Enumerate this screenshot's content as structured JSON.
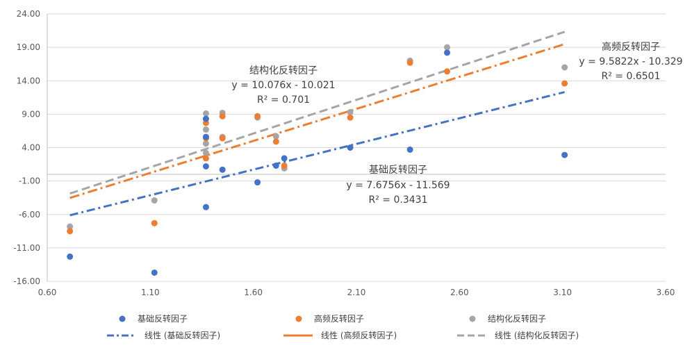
{
  "chart_data": {
    "type": "scatter",
    "xlim": [
      0.6,
      3.6
    ],
    "ylim": [
      -16,
      24
    ],
    "xticks": [
      "0.60",
      "1.10",
      "1.60",
      "2.10",
      "2.60",
      "3.10",
      "3.60"
    ],
    "yticks": [
      "24.00",
      "19.00",
      "14.00",
      "9.00",
      "4.00",
      "-1.00",
      "-6.00",
      "-11.00",
      "-16.00"
    ],
    "grid": "horizontal",
    "legend_position": "bottom",
    "colors": {
      "base": "#4472c4",
      "high": "#ed7d31",
      "struct": "#a5a5a5"
    },
    "series": [
      {
        "name": "基础反转因子",
        "color": "#4472c4",
        "points": [
          [
            0.71,
            -12.3
          ],
          [
            1.12,
            -14.7
          ],
          [
            1.37,
            8.3
          ],
          [
            1.37,
            5.6
          ],
          [
            1.37,
            1.2
          ],
          [
            1.37,
            -4.9
          ],
          [
            1.45,
            0.7
          ],
          [
            1.62,
            -1.2
          ],
          [
            1.71,
            1.3
          ],
          [
            1.75,
            2.4
          ],
          [
            2.07,
            4.0
          ],
          [
            2.36,
            3.7
          ],
          [
            2.54,
            18.2
          ],
          [
            3.11,
            2.9
          ]
        ],
        "trend": {
          "slope": 7.6756,
          "intercept": -11.569,
          "x_range": [
            0.71,
            3.11
          ]
        }
      },
      {
        "name": "高频反转因子",
        "color": "#ed7d31",
        "points": [
          [
            0.71,
            -8.5
          ],
          [
            1.12,
            -7.3
          ],
          [
            1.37,
            7.7
          ],
          [
            1.37,
            5.4
          ],
          [
            1.37,
            2.4
          ],
          [
            1.45,
            8.7
          ],
          [
            1.45,
            5.4
          ],
          [
            1.62,
            8.7
          ],
          [
            1.71,
            4.9
          ],
          [
            1.75,
            1.3
          ],
          [
            2.07,
            8.5
          ],
          [
            2.36,
            16.7
          ],
          [
            2.54,
            15.4
          ],
          [
            3.11,
            13.6
          ]
        ],
        "trend": {
          "slope": 9.5822,
          "intercept": -10.329,
          "x_range": [
            0.71,
            3.11
          ]
        }
      },
      {
        "name": "结构化反转因子",
        "color": "#a5a5a5",
        "points": [
          [
            0.71,
            -7.8
          ],
          [
            1.12,
            -3.9
          ],
          [
            1.37,
            9.1
          ],
          [
            1.37,
            6.7
          ],
          [
            1.37,
            4.6
          ],
          [
            1.37,
            3.2
          ],
          [
            1.45,
            9.2
          ],
          [
            1.45,
            5.6
          ],
          [
            1.62,
            8.5
          ],
          [
            1.71,
            5.7
          ],
          [
            1.75,
            0.9
          ],
          [
            2.07,
            9.3
          ],
          [
            2.36,
            17.0
          ],
          [
            2.54,
            19.0
          ],
          [
            3.11,
            16.0
          ]
        ],
        "trend": {
          "slope": 10.076,
          "intercept": -10.021,
          "x_range": [
            0.71,
            3.11
          ]
        }
      }
    ],
    "annotations": [
      {
        "name": "结构化反转因子",
        "equation": "y = 10.076x - 10.021",
        "r2": "R² = 0.701"
      },
      {
        "name": "高频反转因子",
        "equation": "y = 9.5822x - 10.329",
        "r2": "R² = 0.6501"
      },
      {
        "name": "基础反转因子",
        "equation": "y = 7.6756x - 11.569",
        "r2": "R² = 0.3431"
      }
    ],
    "legend": [
      {
        "label": "基础反转因子",
        "kind": "marker",
        "color": "#4472c4"
      },
      {
        "label": "高频反转因子",
        "kind": "marker",
        "color": "#ed7d31"
      },
      {
        "label": "结构化反转因子",
        "kind": "marker",
        "color": "#a5a5a5"
      },
      {
        "label": "线性 (基础反转因子)",
        "kind": "line",
        "color": "#4472c4"
      },
      {
        "label": "线性 (高频反转因子)",
        "kind": "line",
        "color": "#ed7d31"
      },
      {
        "label": "线性 (结构化反转因子)",
        "kind": "line",
        "color": "#a5a5a5"
      }
    ]
  }
}
